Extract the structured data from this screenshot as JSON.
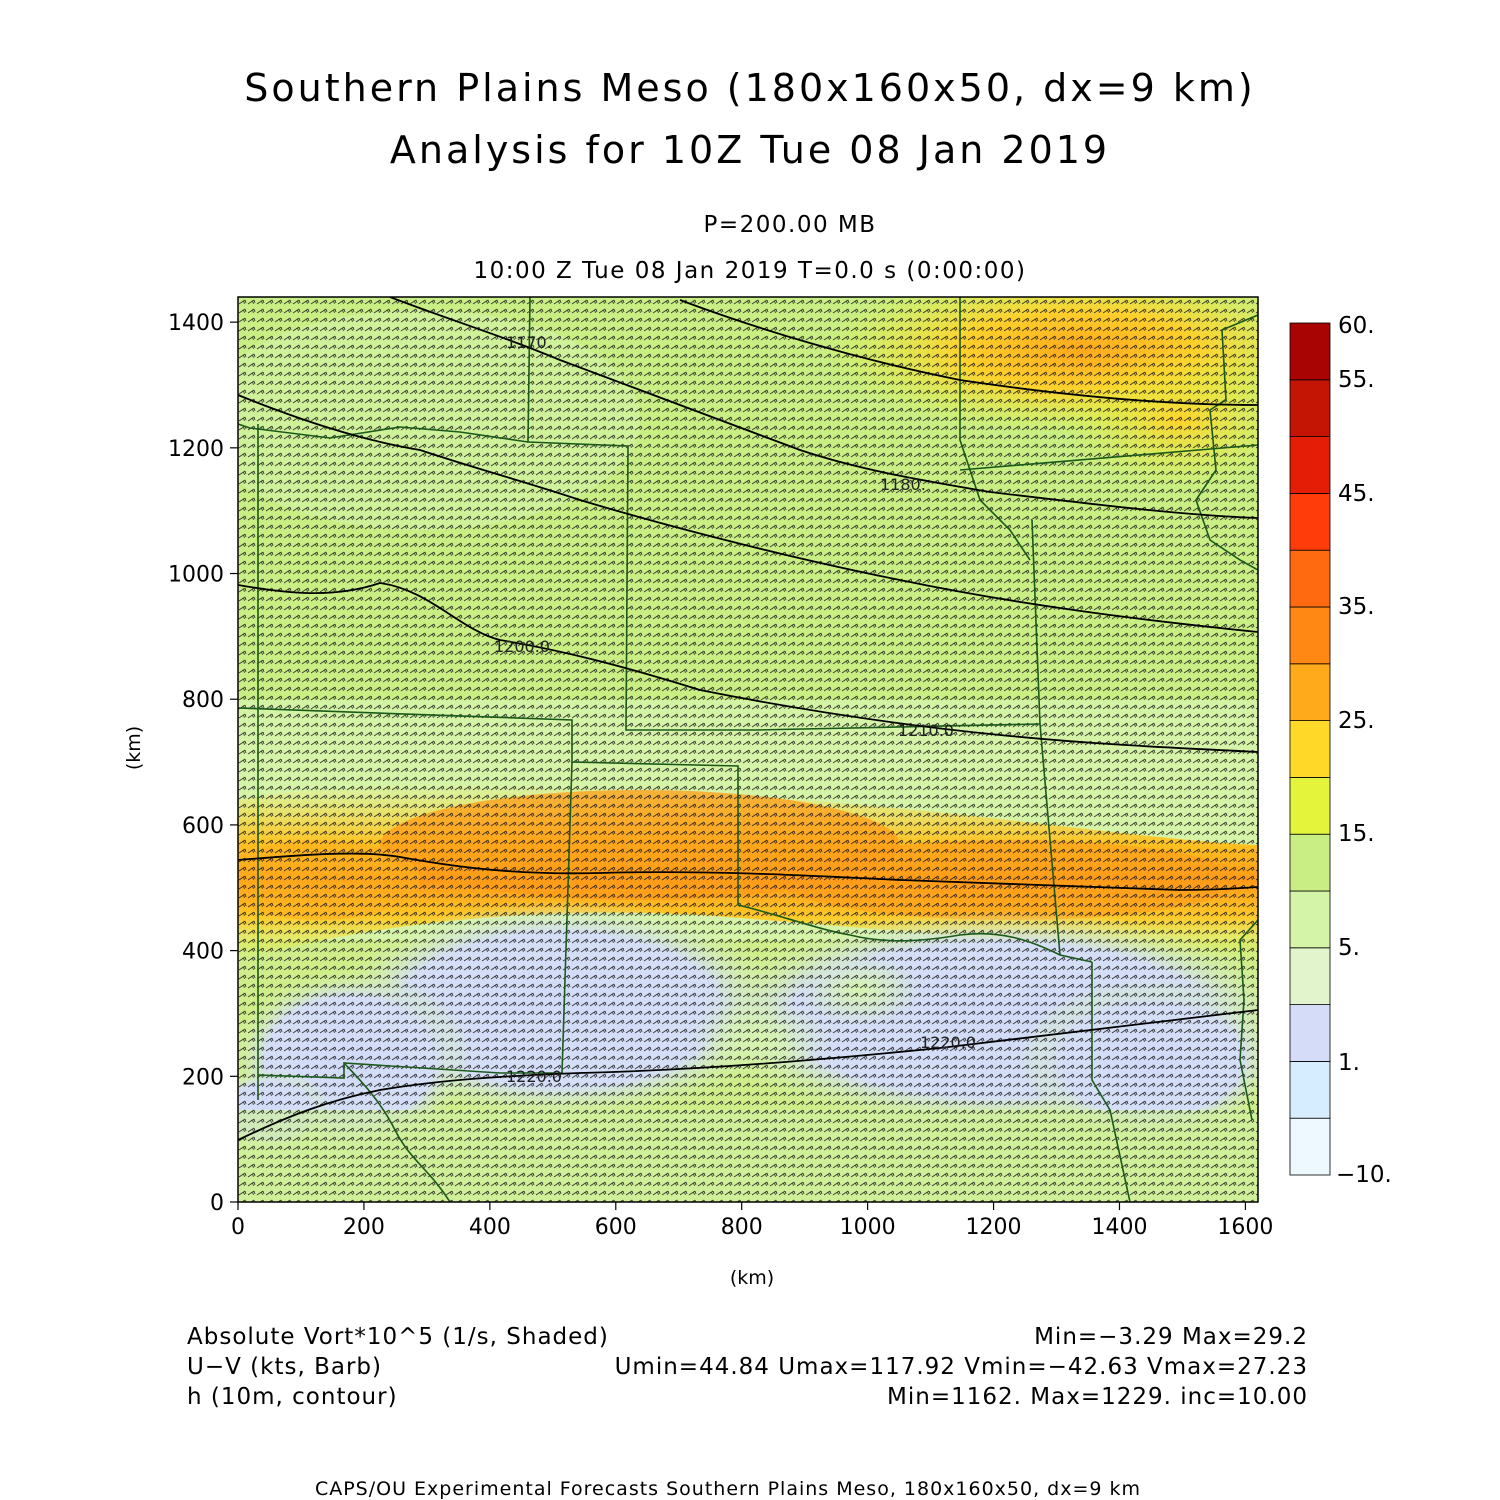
{
  "header": {
    "title_line1": "Southern Plains Meso (180x160x50, dx=9 km)",
    "title_line2": "Analysis for 10Z Tue 08 Jan 2019",
    "level": "P=200.00 MB",
    "valid_time": "10:00 Z Tue 08 Jan 2019    T=0.0 s (0:00:00)"
  },
  "chart_data": {
    "type": "heatmap",
    "xlabel": "(km)",
    "ylabel": "(km)",
    "xlim": [
      0,
      1620
    ],
    "ylim": [
      0,
      1440
    ],
    "xticks": [
      0,
      200,
      400,
      600,
      800,
      1000,
      1200,
      1400,
      1600
    ],
    "yticks": [
      0,
      200,
      400,
      600,
      800,
      1000,
      1200,
      1400
    ],
    "colorbar": {
      "levels": [
        -10,
        1,
        5,
        15,
        25,
        35,
        45,
        55,
        60
      ],
      "tick_labels": [
        "60.",
        "55.",
        "45.",
        "35.",
        "25.",
        "15.",
        "5.",
        "1.",
        "−10."
      ],
      "colors": [
        "#eef8ff",
        "#d6ecff",
        "#d4dcf8",
        "#e2f4cc",
        "#d4f4a8",
        "#c8ee84",
        "#e4f43a",
        "#ffd828",
        "#ffaa1a",
        "#ff8814",
        "#ff6a10",
        "#ff3c0a",
        "#e41e06",
        "#c41404",
        "#a80404"
      ]
    },
    "contours": [
      {
        "label": "1170.",
        "level": 1170
      },
      {
        "label": "1180.",
        "level": 1180
      },
      {
        "label": "1200.0",
        "level": 1200
      },
      {
        "label": "1210.0",
        "level": 1210
      },
      {
        "label": "1220.0",
        "level": 1220
      },
      {
        "label": "1220.0",
        "level": 1220
      }
    ],
    "shaded_field": "Absolute Vort*10^5 (1/s, Shaded)",
    "vector_field": "U-V (kts, Barb)",
    "contour_field": "h (10m, contour)"
  },
  "legend": {
    "shaded_name": "Absolute Vort*10^5 (1/s, Shaded)",
    "shaded_stats": "Min=−3.29  Max=29.2",
    "barb_name": "U−V (kts, Barb)",
    "barb_stats": "Umin=44.84  Umax=117.92  Vmin=−42.63  Vmax=27.23",
    "contour_name": "h (10m, contour)",
    "contour_stats": "Min=1162.  Max=1229.  inc=10.00"
  },
  "footer": "CAPS/OU Experimental Forecasts  Southern Plains Meso, 180x160x50, dx=9 km"
}
